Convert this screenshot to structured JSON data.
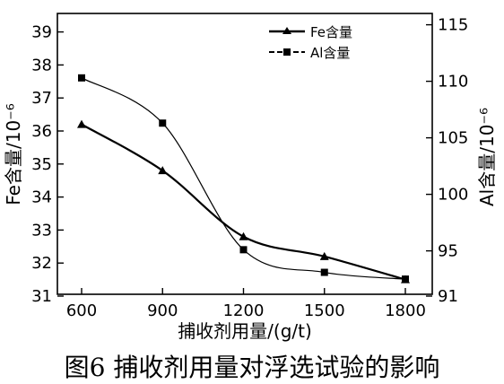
{
  "caption": "图6   捕收剂用量对浮选试验的影响",
  "chart_data": {
    "type": "line",
    "title": "",
    "xlabel": "捕收剂用量/(g/t)",
    "ylabel_left": "Fe含量/10⁻⁶",
    "ylabel_right": "Al含量/10⁻⁶",
    "x": [
      600,
      900,
      1200,
      1500,
      1800
    ],
    "xlim": [
      600,
      1800
    ],
    "xticks": [
      "600",
      "900",
      "1200",
      "1500",
      "1800"
    ],
    "ylim_left": [
      31,
      39.5
    ],
    "yticks_left": [
      "31",
      "32",
      "33",
      "34",
      "35",
      "36",
      "37",
      "38",
      "39"
    ],
    "ylim_right": [
      91,
      116
    ],
    "yticks_right": [
      "91",
      "95",
      "100",
      "105",
      "110",
      "115"
    ],
    "legend_position": "top-right",
    "grid": false,
    "series": [
      {
        "name": "Fe含量",
        "axis": "left",
        "marker": "triangle",
        "color": "#000000",
        "values": [
          36.2,
          34.8,
          32.8,
          32.2,
          31.5
        ]
      },
      {
        "name": "Al含量",
        "axis": "right",
        "marker": "square",
        "color": "#000000",
        "values": [
          110.3,
          106.3,
          95.1,
          93.1,
          92.5
        ]
      }
    ]
  }
}
